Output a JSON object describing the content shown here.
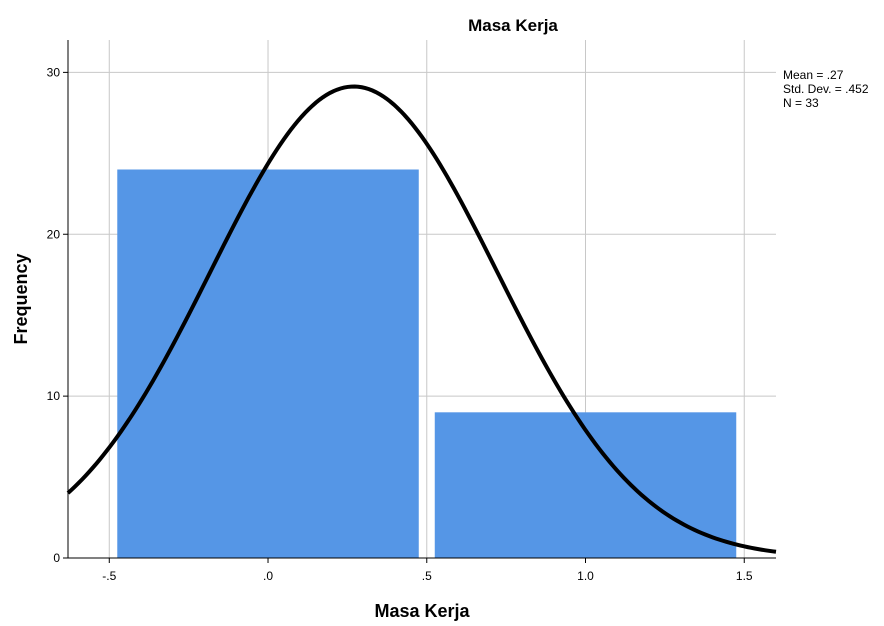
{
  "chart_data": {
    "type": "bar",
    "title": "Masa Kerja",
    "xlabel": "Masa Kerja",
    "ylabel": "Frequency",
    "xlim": [
      -0.63,
      1.6
    ],
    "ylim": [
      0,
      32
    ],
    "x_ticks": [
      -0.5,
      0,
      0.5,
      1.0,
      1.5
    ],
    "x_tick_labels": [
      "-.5",
      ".0",
      ".5",
      "1.0",
      "1.5"
    ],
    "y_ticks": [
      0,
      10,
      20,
      30
    ],
    "y_tick_labels": [
      "0",
      "10",
      "20",
      "30"
    ],
    "bins": [
      {
        "start": -0.5,
        "end": 0.5,
        "value": 24
      },
      {
        "start": 0.5,
        "end": 1.5,
        "value": 9
      }
    ],
    "bar_color": "#5596E6",
    "grid": true,
    "normal_curve": {
      "mean": 0.27,
      "std_dev": 0.452,
      "n": 33,
      "bin_width": 1.0,
      "color": "#000000"
    },
    "stats": {
      "mean_label": "Mean = .27",
      "std_label": "Std. Dev. = .452",
      "n_label": "N = 33"
    },
    "legend_position": "top-right"
  }
}
